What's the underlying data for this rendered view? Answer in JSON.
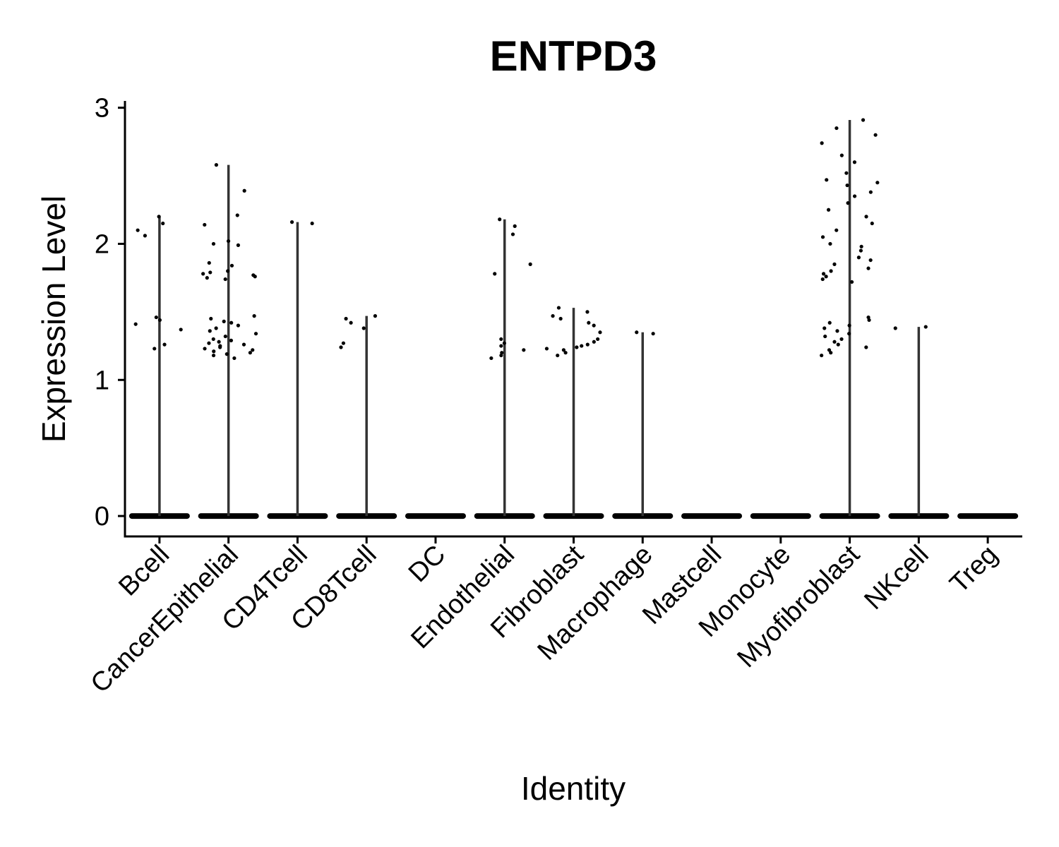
{
  "chart_data": {
    "type": "violin",
    "title": "ENTPD3",
    "xlabel": "Identity",
    "ylabel": "Expression Level",
    "ylim": [
      -0.15,
      3.05
    ],
    "yticks": [
      0,
      1,
      2,
      3
    ],
    "grid": false,
    "categories": [
      "Bcell",
      "CancerEpithelial",
      "CD4Tcell",
      "CD8Tcell",
      "DC",
      "Endothelial",
      "Fibroblast",
      "Macrophage",
      "Mastcell",
      "Monocyte",
      "Myofibroblast",
      "NKcell",
      "Treg"
    ],
    "max_expression": [
      2.2,
      2.58,
      2.16,
      1.47,
      0,
      2.18,
      1.53,
      1.35,
      0,
      0,
      2.91,
      1.39,
      0
    ],
    "nonzero_points": [
      {
        "category": "Bcell",
        "values": [
          2.2,
          2.15,
          2.1,
          2.06,
          1.46,
          1.44,
          1.41,
          1.37,
          1.26,
          1.23
        ]
      },
      {
        "category": "CancerEpithelial",
        "values": [
          2.58,
          2.39,
          2.21,
          2.14,
          2.02,
          2.0,
          1.99,
          1.86,
          1.84,
          1.8,
          1.79,
          1.78,
          1.77,
          1.76,
          1.75,
          1.74,
          1.47,
          1.45,
          1.43,
          1.42,
          1.4,
          1.38,
          1.36,
          1.34,
          1.32,
          1.3,
          1.29,
          1.28,
          1.27,
          1.26,
          1.25,
          1.24,
          1.23,
          1.22,
          1.21,
          1.2,
          1.19,
          1.18,
          1.16
        ]
      },
      {
        "category": "CD4Tcell",
        "values": [
          2.16,
          2.15
        ]
      },
      {
        "category": "CD8Tcell",
        "values": [
          1.47,
          1.45,
          1.42,
          1.38,
          1.27,
          1.24
        ]
      },
      {
        "category": "Endothelial",
        "values": [
          2.18,
          2.13,
          2.07,
          1.85,
          1.78,
          1.3,
          1.27,
          1.25,
          1.22,
          1.2,
          1.18,
          1.16
        ]
      },
      {
        "category": "Fibroblast",
        "values": [
          1.53,
          1.5,
          1.47,
          1.45,
          1.42,
          1.4,
          1.35,
          1.3,
          1.28,
          1.26,
          1.25,
          1.24,
          1.23,
          1.22,
          1.2,
          1.18
        ]
      },
      {
        "category": "Macrophage",
        "values": [
          1.35,
          1.34
        ]
      },
      {
        "category": "Myofibroblast",
        "values": [
          2.91,
          2.85,
          2.8,
          2.74,
          2.65,
          2.6,
          2.52,
          2.47,
          2.45,
          2.43,
          2.38,
          2.35,
          2.3,
          2.25,
          2.2,
          2.15,
          2.1,
          2.05,
          2.0,
          1.98,
          1.95,
          1.9,
          1.88,
          1.85,
          1.82,
          1.8,
          1.78,
          1.76,
          1.74,
          1.72,
          1.46,
          1.44,
          1.42,
          1.4,
          1.38,
          1.36,
          1.34,
          1.32,
          1.3,
          1.28,
          1.26,
          1.24,
          1.22,
          1.2,
          1.18
        ]
      },
      {
        "category": "NKcell",
        "values": [
          1.39,
          1.38
        ]
      }
    ],
    "colors": {
      "points": "#000000",
      "violin": "#333333",
      "axis": "#000000"
    }
  }
}
